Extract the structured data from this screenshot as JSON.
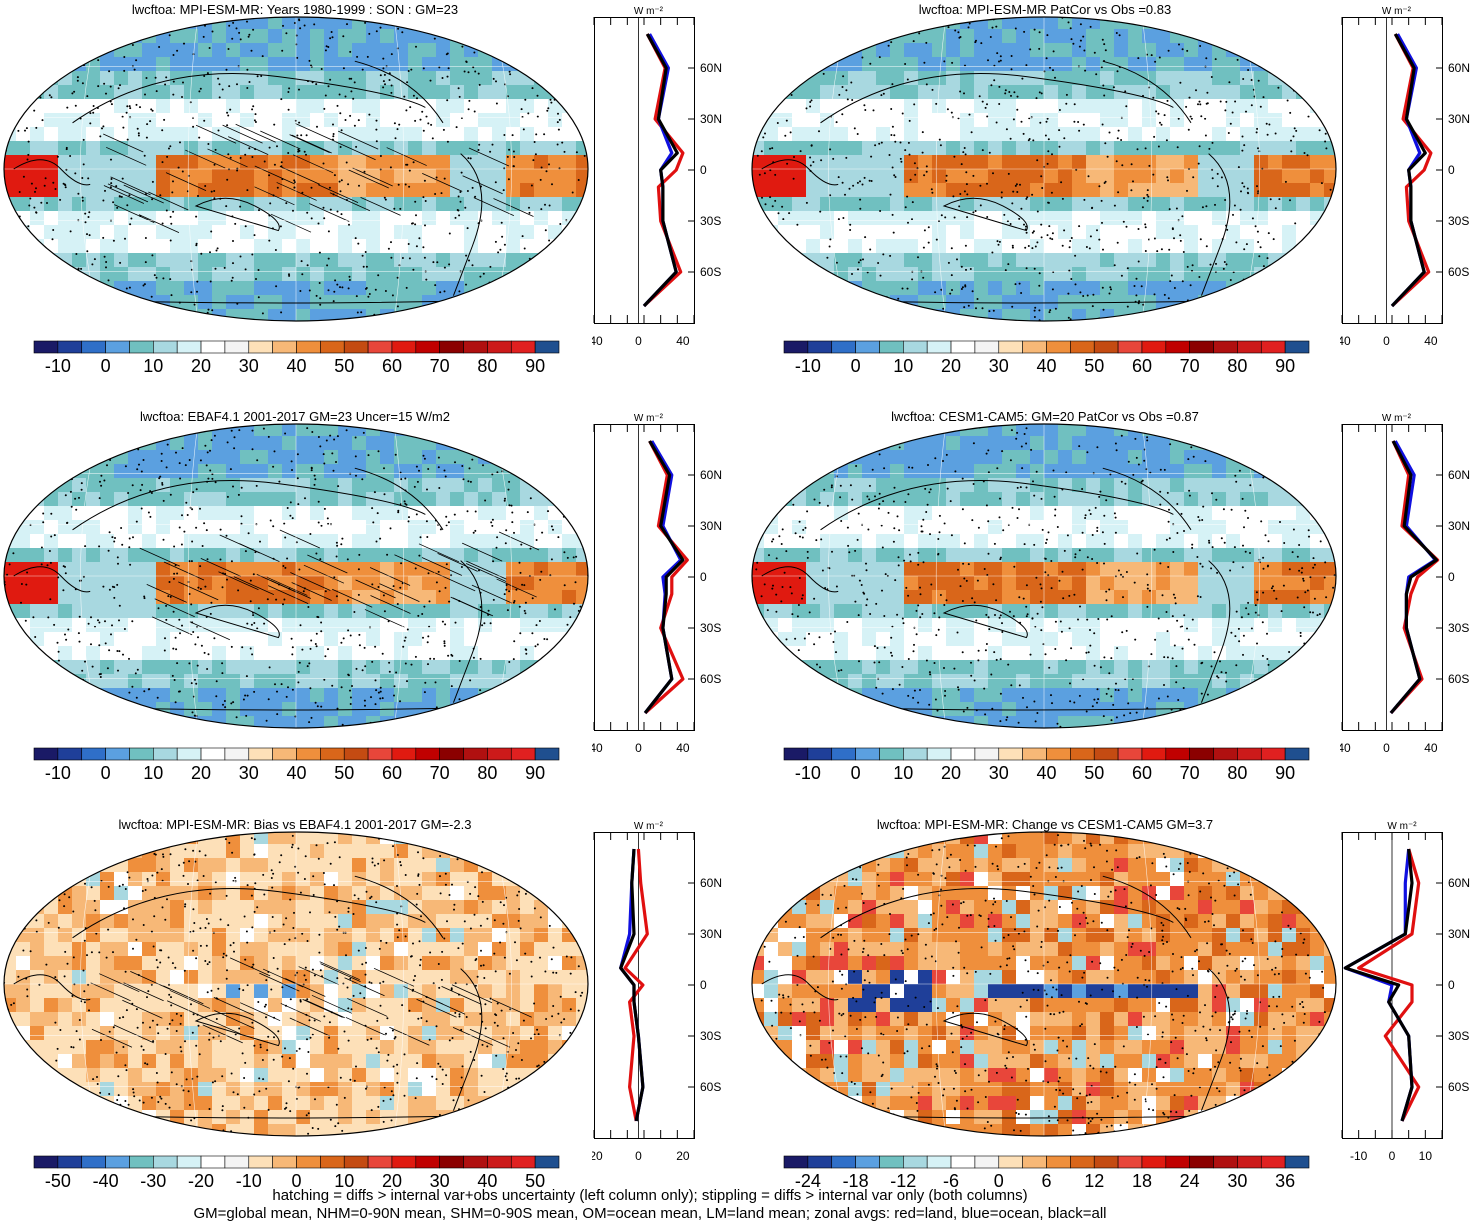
{
  "panels": [
    {
      "title": "lwcftoa: MPI-ESM-MR: Years 1980-1999 : SON : GM=23",
      "type": "mean",
      "hatch": true
    },
    {
      "title": "lwcftoa: MPI-ESM-MR PatCor vs Obs =0.83",
      "type": "mean",
      "hatch": false
    },
    {
      "title": "lwcftoa: EBAF4.1 2001-2017 GM=23 Uncer=15 W/m2",
      "type": "obs",
      "hatch": true
    },
    {
      "title": "lwcftoa: CESM1-CAM5: GM=20 PatCor vs Obs =0.87",
      "type": "model2",
      "hatch": false
    },
    {
      "title": "lwcftoa: MPI-ESM-MR: Bias vs EBAF4.1 2001-2017  GM=-2.3",
      "type": "bias",
      "hatch": true
    },
    {
      "title": "lwcftoa: MPI-ESM-MR: Change vs CESM1-CAM5 GM=3.7",
      "type": "change",
      "hatch": false
    }
  ],
  "colorbars": {
    "mean": {
      "labels": [
        "-10",
        "0",
        "10",
        "20",
        "30",
        "40",
        "50",
        "60",
        "70",
        "80",
        "90"
      ],
      "colors": [
        "#1a1a66",
        "#1f3f99",
        "#2f6fc8",
        "#5ba0e0",
        "#70c0c0",
        "#a8d8e0",
        "#d6f2f6",
        "#ffffff",
        "#f4f4f4",
        "#fde0b8",
        "#f7b877",
        "#ef8f3c",
        "#d9661a",
        "#c44b12",
        "#e8463a",
        "#e01a10",
        "#c00000",
        "#8b0000",
        "#b01010",
        "#cc1a1a",
        "#e02020",
        "#1f4f8f"
      ]
    },
    "bias": {
      "labels": [
        "-50",
        "-40",
        "-30",
        "-20",
        "-10",
        "0",
        "10",
        "20",
        "30",
        "40",
        "50"
      ],
      "colors": [
        "#1a1a66",
        "#1f3f99",
        "#2f6fc8",
        "#5ba0e0",
        "#70c0c0",
        "#a8d8e0",
        "#d6f2f6",
        "#ffffff",
        "#f4f4f4",
        "#fde0b8",
        "#f7b877",
        "#ef8f3c",
        "#d9661a",
        "#c44b12",
        "#e8463a",
        "#e01a10",
        "#c00000",
        "#8b0000",
        "#b01010",
        "#cc1a1a",
        "#e02020",
        "#1f4f8f"
      ]
    },
    "change": {
      "labels": [
        "-24",
        "-18",
        "-12",
        "-6",
        "0",
        "6",
        "12",
        "18",
        "24",
        "30",
        "36"
      ],
      "colors": [
        "#1a1a66",
        "#1f3f99",
        "#2f6fc8",
        "#5ba0e0",
        "#70c0c0",
        "#a8d8e0",
        "#d6f2f6",
        "#ffffff",
        "#f4f4f4",
        "#fde0b8",
        "#f7b877",
        "#ef8f3c",
        "#d9661a",
        "#c44b12",
        "#e8463a",
        "#e01a10",
        "#c00000",
        "#8b0000",
        "#b01010",
        "#cc1a1a",
        "#e02020",
        "#1f4f8f"
      ]
    }
  },
  "zonal_axes": {
    "lat_labels": [
      "60N",
      "30N",
      "0",
      "30S",
      "60S"
    ],
    "unit": "W m⁻²",
    "x_ticks_mean": [
      "-40",
      "0",
      "40"
    ],
    "x_ticks_bias": [
      "-20",
      "0",
      "20"
    ],
    "x_ticks_change": [
      "-10",
      "0",
      "10"
    ]
  },
  "footnote": {
    "line1": "hatching = diffs > internal var+obs uncertainty (left column only); stippling = diffs > internal var only (both columns)",
    "line2": "GM=global mean, NHM=0-90N mean, SHM=0-90S mean, OM=ocean mean, LM=land mean; zonal avgs: red=land, blue=ocean, black=all"
  },
  "chart_data": [
    {
      "type": "heatmap",
      "title": "lwcftoa: MPI-ESM-MR: Years 1980-1999 : SON : GM=23",
      "colorbar_ticks": [
        -10,
        0,
        10,
        20,
        30,
        40,
        50,
        60,
        70,
        80,
        90
      ],
      "zonal_mean": {
        "lat": [
          80,
          60,
          30,
          10,
          0,
          -10,
          -30,
          -60,
          -80
        ],
        "all": [
          8,
          25,
          18,
          35,
          20,
          22,
          22,
          34,
          5
        ],
        "ocean": [
          10,
          27,
          18,
          30,
          20,
          22,
          22,
          34,
          5
        ],
        "land": [
          8,
          24,
          15,
          40,
          34,
          18,
          20,
          38,
          5
        ],
        "xlim": [
          -40,
          50
        ]
      }
    },
    {
      "type": "heatmap",
      "title": "lwcftoa: MPI-ESM-MR PatCor vs Obs =0.83",
      "colorbar_ticks": [
        -10,
        0,
        10,
        20,
        30,
        40,
        50,
        60,
        70,
        80,
        90
      ],
      "zonal_mean": {
        "lat": [
          80,
          60,
          30,
          10,
          0,
          -10,
          -30,
          -60,
          -80
        ],
        "all": [
          8,
          25,
          18,
          35,
          20,
          22,
          22,
          34,
          5
        ],
        "ocean": [
          10,
          27,
          18,
          30,
          20,
          22,
          22,
          34,
          5
        ],
        "land": [
          8,
          24,
          15,
          40,
          34,
          18,
          20,
          38,
          5
        ],
        "xlim": [
          -40,
          50
        ]
      }
    },
    {
      "type": "heatmap",
      "title": "lwcftoa: EBAF4.1 2001-2017 GM=23 Uncer=15 W/m2",
      "colorbar_ticks": [
        -10,
        0,
        10,
        20,
        30,
        40,
        50,
        60,
        70,
        80,
        90
      ],
      "zonal_mean": {
        "lat": [
          80,
          60,
          30,
          10,
          0,
          -10,
          -30,
          -60,
          -80
        ],
        "all": [
          10,
          28,
          20,
          40,
          25,
          25,
          22,
          30,
          6
        ],
        "ocean": [
          12,
          30,
          22,
          38,
          22,
          24,
          22,
          30,
          6
        ],
        "land": [
          10,
          26,
          18,
          44,
          30,
          30,
          20,
          40,
          6
        ],
        "xlim": [
          -40,
          50
        ]
      }
    },
    {
      "type": "heatmap",
      "title": "lwcftoa: CESM1-CAM5: GM=20 PatCor vs Obs =0.87",
      "colorbar_ticks": [
        -10,
        0,
        10,
        20,
        30,
        40,
        50,
        60,
        70,
        80,
        90
      ],
      "zonal_mean": {
        "lat": [
          80,
          60,
          30,
          10,
          0,
          -10,
          -30,
          -60,
          -80
        ],
        "all": [
          6,
          22,
          16,
          45,
          22,
          18,
          18,
          30,
          4
        ],
        "ocean": [
          8,
          25,
          18,
          44,
          20,
          18,
          18,
          30,
          4
        ],
        "land": [
          6,
          20,
          14,
          46,
          28,
          22,
          16,
          32,
          4
        ],
        "xlim": [
          -40,
          50
        ]
      }
    },
    {
      "type": "heatmap",
      "title": "lwcftoa: MPI-ESM-MR: Bias vs EBAF4.1 2001-2017  GM=-2.3",
      "colorbar_ticks": [
        -50,
        -40,
        -30,
        -20,
        -10,
        0,
        10,
        20,
        30,
        40,
        50
      ],
      "zonal_mean": {
        "lat": [
          80,
          60,
          30,
          10,
          0,
          -10,
          -30,
          -60,
          -80
        ],
        "all": [
          -2,
          -3,
          -2,
          -8,
          -2,
          -2,
          0,
          2,
          -1
        ],
        "ocean": [
          -2,
          -3,
          -4,
          -8,
          -2,
          -2,
          0,
          2,
          -1
        ],
        "land": [
          0,
          1,
          4,
          -6,
          2,
          -4,
          -2,
          -4,
          -1
        ],
        "xlim": [
          -20,
          25
        ]
      }
    },
    {
      "type": "heatmap",
      "title": "lwcftoa: MPI-ESM-MR: Change vs CESM1-CAM5 GM=3.7",
      "colorbar_ticks": [
        -24,
        -18,
        -12,
        -6,
        0,
        6,
        12,
        18,
        24,
        30,
        36
      ],
      "zonal_mean": {
        "lat": [
          80,
          60,
          30,
          10,
          0,
          -10,
          -30,
          -60,
          -80
        ],
        "all": [
          5,
          6,
          4,
          -14,
          2,
          -1,
          5,
          6,
          3
        ],
        "ocean": [
          5,
          4,
          4,
          -14,
          0,
          -1,
          5,
          6,
          3
        ],
        "land": [
          5,
          8,
          6,
          -10,
          6,
          6,
          -2,
          8,
          3
        ],
        "xlim": [
          -15,
          15
        ]
      }
    }
  ]
}
